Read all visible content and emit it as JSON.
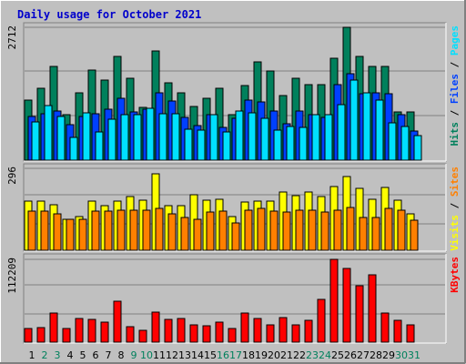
{
  "chart_data": {
    "type": "bar",
    "title": "Daily usage for October 2021",
    "colors": {
      "background": "#C0C0C0",
      "hits": "#00805C",
      "files": "#0040FF",
      "pages": "#00E0FF",
      "visits": "#FFFF00",
      "sites": "#FF8000",
      "kbytes": "#FF0000",
      "title": "#0000CC",
      "weekday": "#000000",
      "weekend": "#00805C"
    },
    "days": [
      "1",
      "2",
      "3",
      "4",
      "5",
      "6",
      "7",
      "8",
      "9",
      "10",
      "11",
      "12",
      "13",
      "14",
      "15",
      "16",
      "17",
      "18",
      "19",
      "20",
      "21",
      "22",
      "23",
      "24",
      "25",
      "26",
      "27",
      "28",
      "29",
      "30",
      "31"
    ],
    "weekend_days": [
      "2",
      "3",
      "9",
      "10",
      "16",
      "17",
      "23",
      "24",
      "30",
      "31"
    ],
    "panels": [
      {
        "id": "requests",
        "ymax_label": "2712",
        "ymax": 2712,
        "side_labels": [
          {
            "text": "Hits",
            "color": "#00805C"
          },
          {
            "text": "Files",
            "color": "#0040FF"
          },
          {
            "text": "Pages",
            "color": "#00E0FF"
          }
        ],
        "series": [
          {
            "name": "Hits",
            "color": "#00805C",
            "values": [
              1220,
              1470,
              1920,
              920,
              1380,
              1830,
              1630,
              2120,
              1680,
              1080,
              2220,
              1570,
              1380,
              1090,
              1260,
              1470,
              920,
              1520,
              2010,
              1820,
              1320,
              1670,
              1540,
              1540,
              2080,
              2712,
              2120,
              1920,
              1920,
              980,
              980
            ]
          },
          {
            "name": "Files",
            "color": "#0040FF",
            "values": [
              900,
              940,
              1000,
              720,
              890,
              950,
              1040,
              1270,
              980,
              1040,
              1380,
              1200,
              870,
              700,
              920,
              670,
              850,
              1220,
              1180,
              1010,
              740,
              1010,
              920,
              870,
              1540,
              1770,
              1350,
              1380,
              1360,
              930,
              600
            ]
          },
          {
            "name": "Pages",
            "color": "#00E0FF",
            "values": [
              780,
              1120,
              900,
              470,
              960,
              580,
              830,
              930,
              930,
              1060,
              950,
              940,
              630,
              620,
              920,
              570,
              1000,
              960,
              850,
              620,
              690,
              670,
              930,
              920,
              1130,
              1640,
              1370,
              1220,
              760,
              690,
              500
            ]
          }
        ]
      },
      {
        "id": "visits",
        "ymax_label": "296",
        "ymax": 296,
        "side_labels": [
          {
            "text": "Visits",
            "color": "#FFFF00"
          },
          {
            "text": "Sites",
            "color": "#FF8000"
          }
        ],
        "series": [
          {
            "name": "Visits",
            "color": "#FFFF00",
            "values": [
              178,
              178,
              165,
              112,
              121,
              178,
              162,
              178,
              193,
              180,
              276,
              162,
              162,
              201,
              181,
              185,
              121,
              173,
              178,
              178,
              212,
              196,
              212,
              193,
              231,
              267,
              224,
              185,
              228,
              181,
              133
            ]
          },
          {
            "name": "Sites",
            "color": "#FF8000",
            "values": [
              142,
              142,
              133,
              112,
              112,
              142,
              140,
              145,
              145,
              145,
              150,
              133,
              120,
              112,
              137,
              140,
              100,
              145,
              150,
              140,
              137,
              145,
              145,
              137,
              145,
              154,
              120,
              120,
              150,
              145,
              108
            ]
          }
        ]
      },
      {
        "id": "kbytes",
        "ymax_label": "112209",
        "ymax": 112209,
        "side_labels": [
          {
            "text": "KBytes",
            "color": "#FF0000"
          }
        ],
        "series": [
          {
            "name": "KBytes",
            "color": "#FF0000",
            "values": [
              18500,
              20000,
              40000,
              19000,
              32000,
              31000,
              27000,
              55000,
              21000,
              16000,
              41000,
              31000,
              32000,
              24000,
              22000,
              27000,
              18000,
              40000,
              32000,
              23000,
              33000,
              23000,
              29000,
              58000,
              112209,
              100000,
              77000,
              91000,
              39000,
              30000,
              23000
            ]
          }
        ]
      }
    ]
  }
}
